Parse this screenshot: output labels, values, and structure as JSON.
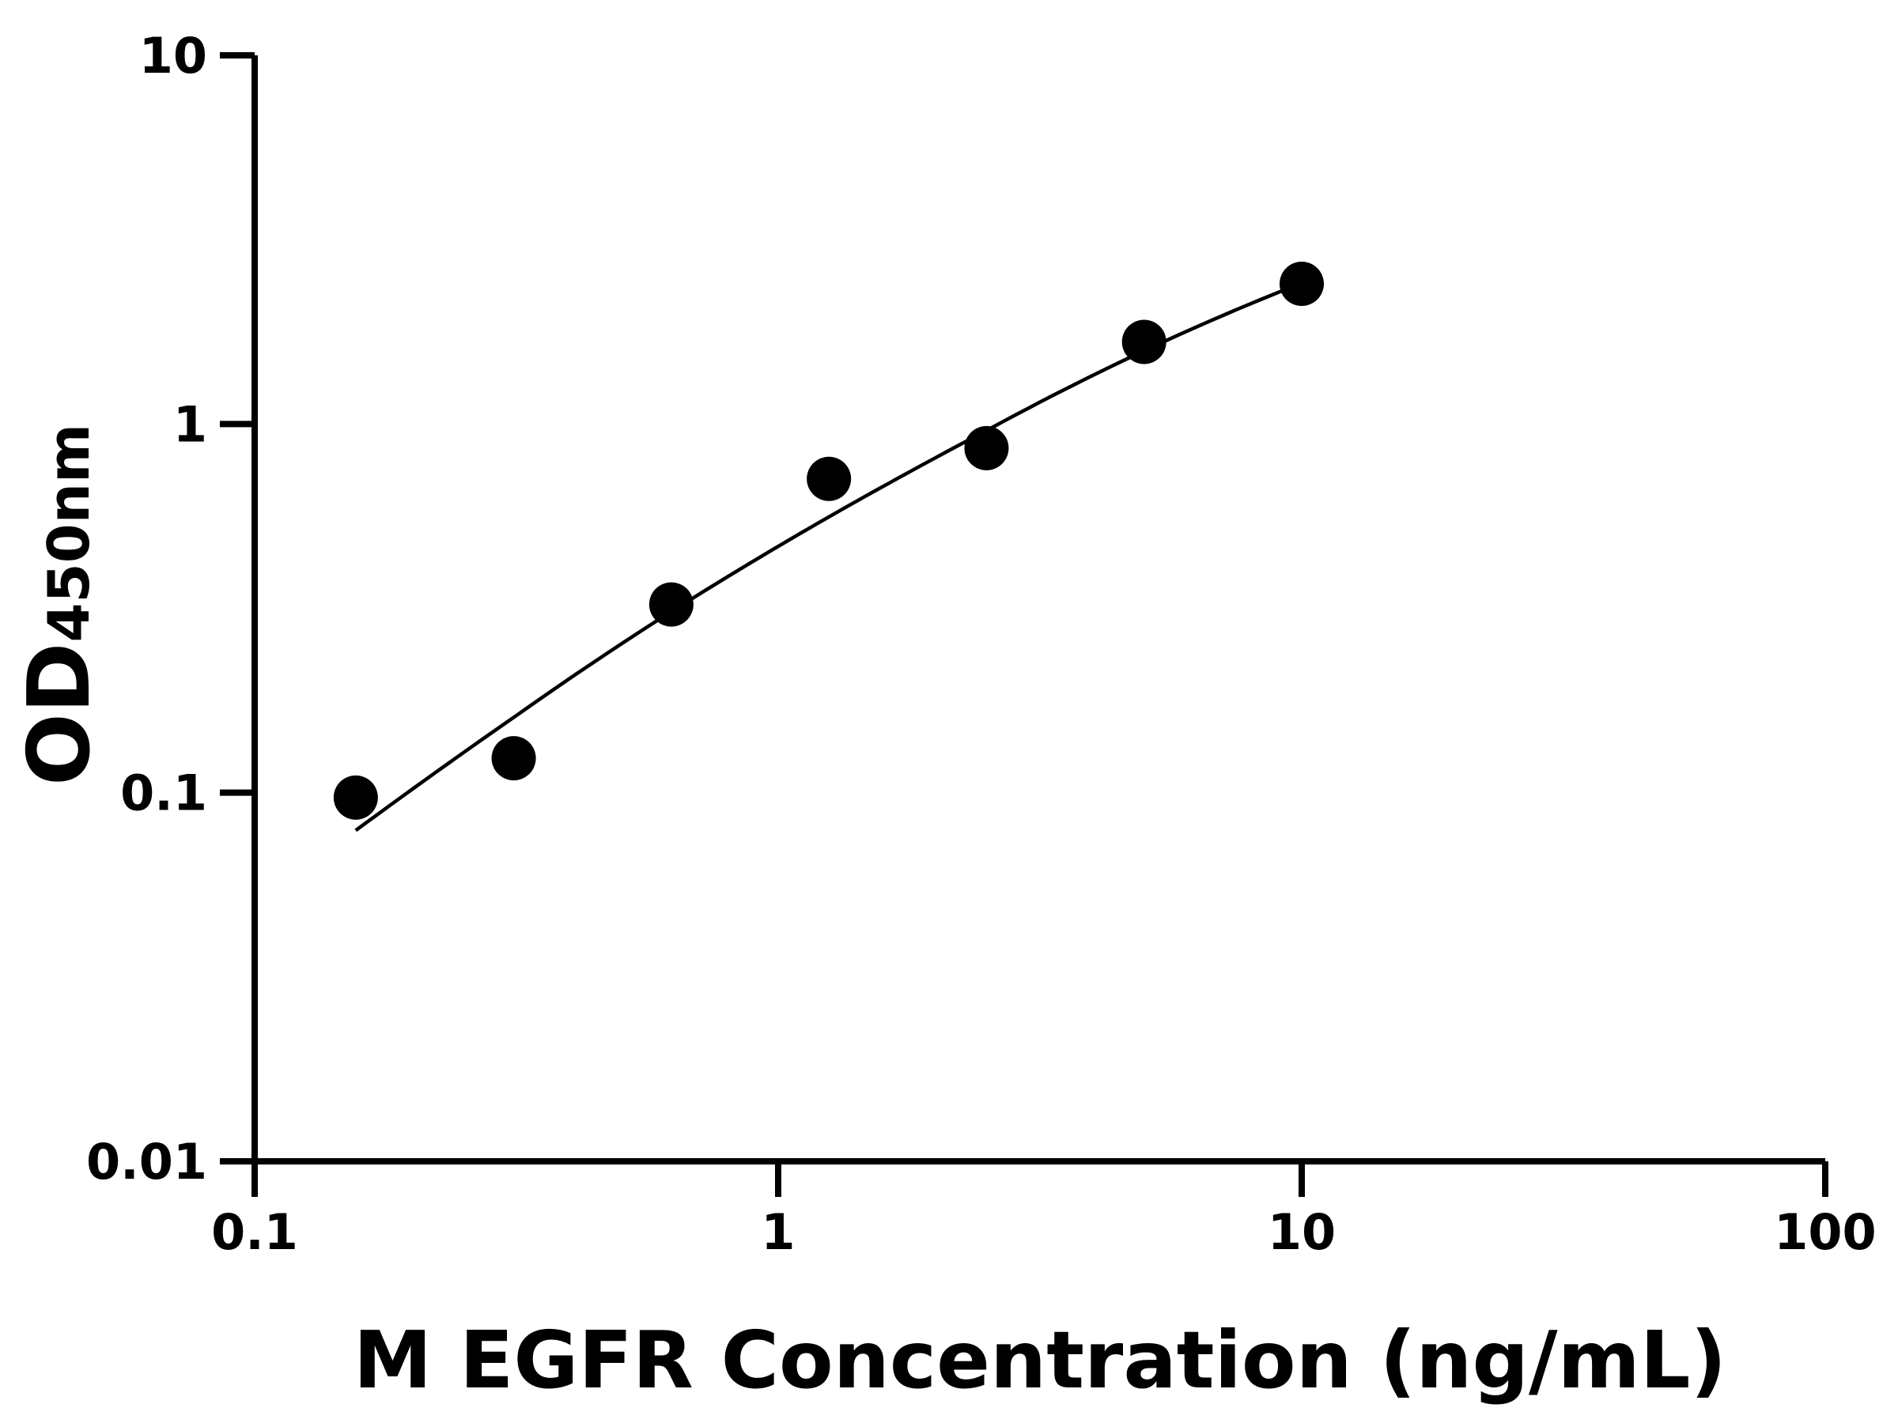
{
  "chart_data": {
    "type": "scatter",
    "title": "",
    "xlabel": "M EGFR Concentration (ng/mL)",
    "ylabel_main": "OD",
    "ylabel_sub": "450nm",
    "x_scale": "log",
    "y_scale": "log",
    "xlim": [
      0.1,
      100
    ],
    "ylim": [
      0.01,
      10
    ],
    "x_ticks": [
      0.1,
      1,
      10,
      100
    ],
    "x_tick_labels": [
      "0.1",
      "1",
      "10",
      "100"
    ],
    "y_ticks": [
      0.01,
      0.1,
      1,
      10
    ],
    "y_tick_labels": [
      "0.01",
      "0.1",
      "1",
      "10"
    ],
    "grid": false,
    "legend": "none",
    "point_color": "#000000",
    "series": [
      {
        "x": [
          0.156,
          0.3125,
          0.625,
          1.25,
          2.5,
          5,
          10
        ],
        "y": [
          0.097,
          0.124,
          0.324,
          0.71,
          0.86,
          1.67,
          2.4
        ]
      }
    ],
    "fit_curve": {
      "x": [
        0.156,
        0.3125,
        0.625,
        1.25,
        2.5,
        5,
        9.2
      ],
      "y": [
        0.079,
        0.16,
        0.31,
        0.56,
        0.96,
        1.58,
        2.3
      ]
    }
  }
}
